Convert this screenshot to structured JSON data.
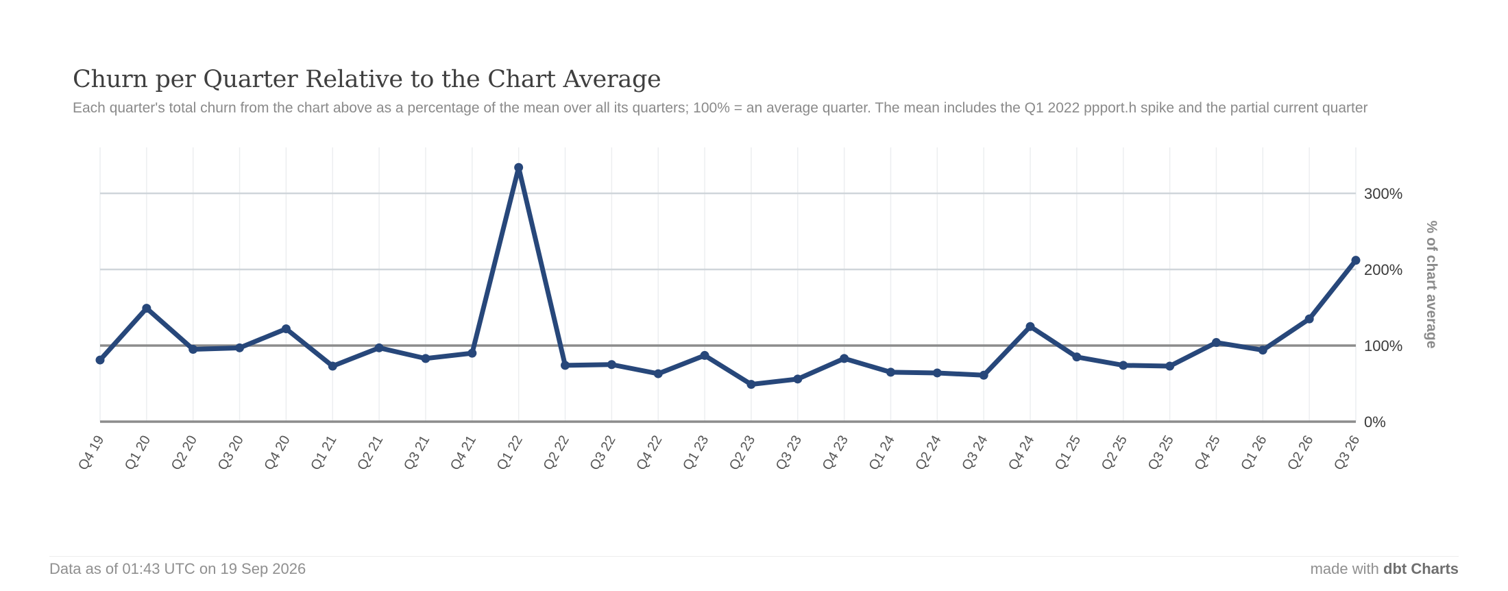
{
  "chart_data": {
    "type": "line",
    "title": "Churn per Quarter Relative to the Chart Average",
    "subtitle": "Each quarter's total churn from the chart above as a percentage of the mean over all its quarters; 100% = an average quarter. The mean includes the Q1 2022 ppport.h spike and the partial current quarter",
    "xlabel": "",
    "ylabel": "% of chart average",
    "categories": [
      "Q4 19",
      "Q1 20",
      "Q2 20",
      "Q3 20",
      "Q4 20",
      "Q1 21",
      "Q2 21",
      "Q3 21",
      "Q4 21",
      "Q1 22",
      "Q2 22",
      "Q3 22",
      "Q4 22",
      "Q1 23",
      "Q2 23",
      "Q3 23",
      "Q4 23",
      "Q1 24",
      "Q2 24",
      "Q3 24",
      "Q4 24",
      "Q1 25",
      "Q2 25",
      "Q3 25",
      "Q4 25",
      "Q1 26",
      "Q2 26",
      "Q3 26"
    ],
    "series": [
      {
        "values": [
          81,
          149,
          95,
          97,
          122,
          73,
          97,
          83,
          90,
          334,
          74,
          75,
          63,
          87,
          49,
          56,
          83,
          65,
          64,
          61,
          125,
          85,
          74,
          73,
          104,
          94,
          135,
          212
        ]
      }
    ],
    "ylim": [
      0,
      360
    ],
    "yticks": [
      0,
      100,
      200,
      300
    ],
    "ytick_labels": [
      "0%",
      "100%",
      "200%",
      "300%"
    ],
    "reference_line": 100,
    "grid": true,
    "y_axis_side": "right",
    "colors": {
      "line": "#27477a",
      "grid": "#cfd5da",
      "reference": "#8c8c8c",
      "vgrid": "#eceef0"
    }
  },
  "footer": {
    "data_as_of": "Data as of 01:43 UTC on 19 Sep 2026",
    "made_with_prefix": "made with ",
    "made_with_brand": "dbt Charts"
  }
}
